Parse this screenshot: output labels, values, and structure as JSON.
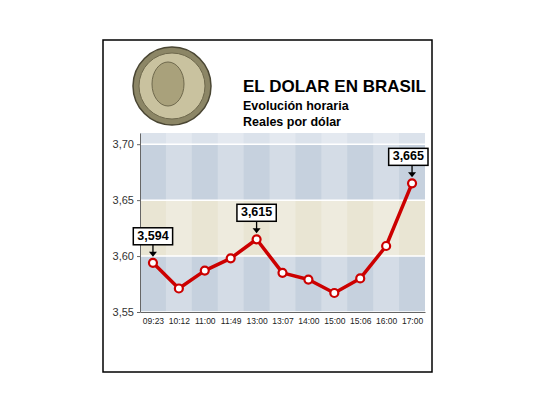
{
  "chart_data": {
    "type": "line",
    "title": "EL DOLAR EN BRASIL",
    "subtitle": [
      "Evolución horaria",
      "Reales por dólar"
    ],
    "categories": [
      "09:23",
      "10:12",
      "11:00",
      "11:49",
      "13:00",
      "13:07",
      "14:00",
      "15:00",
      "15:06",
      "16:00",
      "17:00"
    ],
    "values": [
      3.594,
      3.571,
      3.587,
      3.598,
      3.615,
      3.585,
      3.579,
      3.567,
      3.58,
      3.609,
      3.665
    ],
    "value_labels": [
      "3,594",
      null,
      null,
      null,
      "3,615",
      null,
      null,
      null,
      null,
      null,
      "3,665"
    ],
    "data_labels": true,
    "color": "#cc0000",
    "marker": "circle",
    "ylim": [
      3.55,
      3.71
    ],
    "yticks": [
      {
        "value": 3.55,
        "label": "3,55"
      },
      {
        "value": 3.6,
        "label": "3,60"
      },
      {
        "value": 3.65,
        "label": "3,65"
      },
      {
        "value": 3.7,
        "label": "3,70"
      }
    ],
    "grid": true
  }
}
